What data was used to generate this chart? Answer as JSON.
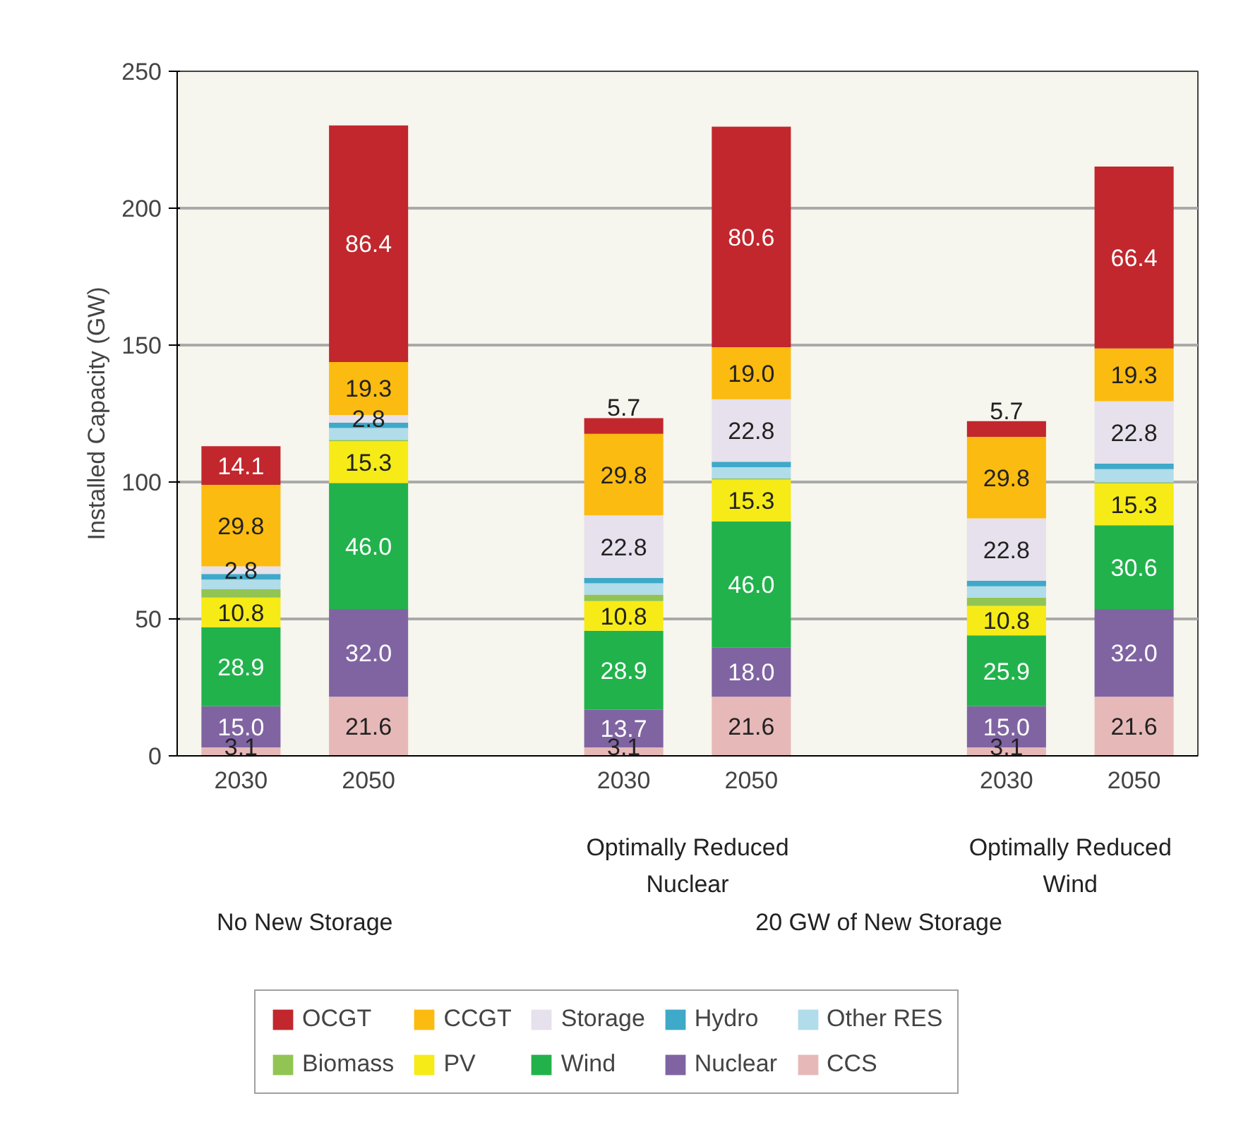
{
  "chart_data": {
    "type": "bar",
    "stacked": true,
    "ylabel": "Installed Capacity (GW)",
    "categories": [
      "2030",
      "2050",
      null,
      "2030",
      "2050",
      null,
      "2030",
      "2050"
    ],
    "ylim": [
      0,
      250
    ],
    "yticks": [
      0,
      50,
      100,
      150,
      200,
      250
    ],
    "grid": "y",
    "legend": "bottom",
    "annotations": [
      "Optimally Reduced Nuclear",
      "Optimally Reduced Wind",
      "No New Storage",
      "20 GW of New Storage"
    ],
    "series": [
      {
        "name": "CCS",
        "color": "#e6b9b8",
        "values": [
          3.1,
          21.6,
          null,
          3.1,
          21.6,
          null,
          3.1,
          21.6
        ],
        "value_labels": [
          "3.1",
          "21.6",
          null,
          "3.1",
          "21.6",
          null,
          "3.1",
          "21.6"
        ]
      },
      {
        "name": "Nuclear",
        "color": "#8064a2",
        "values": [
          15.0,
          32.0,
          null,
          13.7,
          18.0,
          null,
          15.0,
          32.0
        ],
        "value_labels": [
          "15.0",
          "32.0",
          null,
          "13.7",
          "18.0",
          null,
          "15.0",
          "32.0"
        ]
      },
      {
        "name": "Wind",
        "color": "#22b24c",
        "values": [
          28.9,
          46.0,
          null,
          28.9,
          46.0,
          null,
          25.9,
          30.6
        ],
        "value_labels": [
          "28.9",
          "46.0",
          null,
          "28.9",
          "46.0",
          null,
          "25.9",
          "30.6"
        ]
      },
      {
        "name": "PV",
        "color": "#f6eb16",
        "values": [
          10.8,
          15.3,
          null,
          10.8,
          15.3,
          null,
          10.8,
          15.3
        ],
        "value_labels": [
          "10.8",
          "15.3",
          null,
          "10.8",
          "15.3",
          null,
          "10.8",
          "15.3"
        ]
      },
      {
        "name": "Biomass",
        "color": "#92c453",
        "values": [
          3.0,
          0.5,
          null,
          2.4,
          0.4,
          null,
          3.0,
          0.4
        ],
        "value_labels": [
          null,
          null,
          null,
          null,
          null,
          null,
          null,
          null
        ]
      },
      {
        "name": "Other RES",
        "color": "#b1dcea",
        "values": [
          3.6,
          4.3,
          null,
          4.1,
          4.1,
          null,
          4.1,
          4.8
        ],
        "value_labels": [
          null,
          null,
          null,
          null,
          null,
          null,
          null,
          null
        ]
      },
      {
        "name": "Hydro",
        "color": "#3ea9c9",
        "values": [
          2.0,
          2.0,
          null,
          2.0,
          2.0,
          null,
          2.0,
          2.0
        ],
        "value_labels": [
          null,
          null,
          null,
          null,
          null,
          null,
          null,
          null
        ]
      },
      {
        "name": "Storage",
        "color": "#e6e1ec",
        "values": [
          2.8,
          2.8,
          null,
          22.8,
          22.8,
          null,
          22.8,
          22.8
        ],
        "value_labels": [
          "2.8",
          "2.8",
          null,
          "22.8",
          "22.8",
          null,
          "22.8",
          "22.8"
        ]
      },
      {
        "name": "CCGT",
        "color": "#fbbb10",
        "values": [
          29.8,
          19.3,
          null,
          29.8,
          19.0,
          null,
          29.8,
          19.3
        ],
        "value_labels": [
          "29.8",
          "19.3",
          null,
          "29.8",
          "19.0",
          null,
          "29.8",
          "19.3"
        ]
      },
      {
        "name": "OCGT",
        "color": "#c1272d",
        "values": [
          14.1,
          86.4,
          null,
          5.7,
          80.6,
          null,
          5.7,
          66.4
        ],
        "value_labels": [
          "14.1",
          "86.4",
          null,
          "5.7",
          "80.6",
          null,
          "5.7",
          "66.4"
        ]
      }
    ]
  }
}
